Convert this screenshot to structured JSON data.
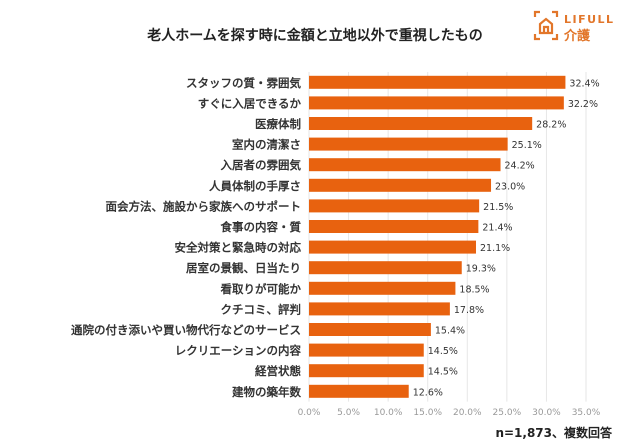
{
  "brand": {
    "name_en": "LIFULL",
    "name_ja": "介護",
    "color": "#e2762a"
  },
  "note": "n=1,873、複数回答",
  "chart_data": {
    "type": "bar",
    "orientation": "horizontal",
    "title": "老人ホームを探す時に金額と立地以外で重視したもの",
    "categories": [
      "スタッフの質・雰囲気",
      "すぐに入居できるか",
      "医療体制",
      "室内の清潔さ",
      "入居者の雰囲気",
      "人員体制の手厚さ",
      "面会方法、施設から家族へのサポート",
      "食事の内容・質",
      "安全対策と緊急時の対応",
      "居室の景観、日当たり",
      "看取りが可能か",
      "クチコミ、評判",
      "通院の付き添いや買い物代行などのサービス",
      "レクリエーションの内容",
      "経営状態",
      "建物の築年数"
    ],
    "values": [
      32.4,
      32.2,
      28.2,
      25.1,
      24.2,
      23.0,
      21.5,
      21.4,
      21.1,
      19.3,
      18.5,
      17.8,
      15.4,
      14.5,
      14.5,
      12.6
    ],
    "data_labels": [
      "32.4%",
      "32.2%",
      "28.2%",
      "25.1%",
      "24.2%",
      "23.0%",
      "21.5%",
      "21.4%",
      "21.1%",
      "19.3%",
      "18.5%",
      "17.8%",
      "15.4%",
      "14.5%",
      "14.5%",
      "12.6%"
    ],
    "xlim": [
      0,
      35
    ],
    "x_ticks": [
      "0.0%",
      "5.0%",
      "10.0%",
      "15.0%",
      "20.0%",
      "25.0%",
      "30.0%",
      "35.0%"
    ],
    "grid": true,
    "bar_color": "#e8620f",
    "xlabel": "",
    "ylabel": ""
  }
}
